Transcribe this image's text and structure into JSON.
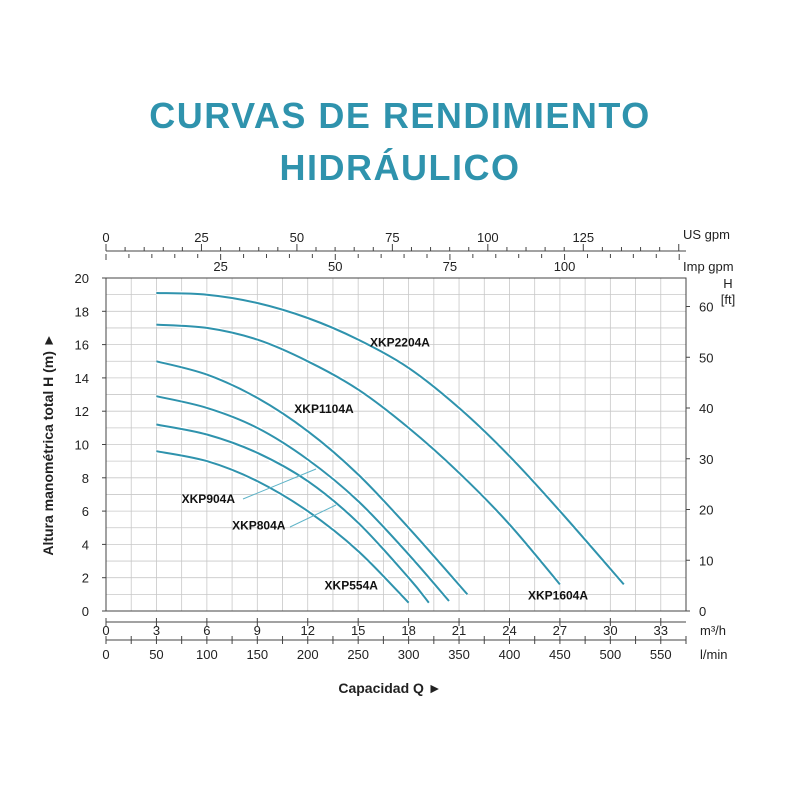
{
  "title_line1": "CURVAS DE RENDIMIENTO",
  "title_line2": "HIDRÁULICO",
  "chart_data": {
    "type": "line",
    "title": "CURVAS DE RENDIMIENTO HIDRÁULICO",
    "xlabel": "Capacidad Q ►",
    "ylabel": "Altura manométrica total H (m) ►",
    "xlim": [
      0,
      34.5
    ],
    "ylim": [
      0,
      20
    ],
    "grid": true,
    "x_unit": "m³/h",
    "x_ticks": [
      0,
      3,
      6,
      9,
      12,
      15,
      18,
      21,
      24,
      27,
      30,
      33
    ],
    "y_ticks": [
      0,
      2,
      4,
      6,
      8,
      10,
      12,
      14,
      16,
      18,
      20
    ],
    "secondary_axes": {
      "lmin": {
        "unit": "l/min",
        "ticks": [
          0,
          50,
          100,
          150,
          200,
          250,
          300,
          350,
          400,
          450,
          500,
          550
        ]
      },
      "usgpm": {
        "unit": "US gpm",
        "ticks": [
          0,
          25,
          50,
          75,
          100,
          125
        ]
      },
      "impgpm": {
        "unit": "Imp gpm",
        "ticks": [
          25,
          50,
          75,
          100
        ]
      },
      "ft": {
        "unit_line1": "H",
        "unit_line2": "[ft]",
        "ticks": [
          0,
          10,
          20,
          30,
          40,
          50,
          60
        ]
      }
    },
    "series": [
      {
        "name": "XKP554A",
        "color": "#2f93ad",
        "x": [
          3,
          6,
          9,
          12,
          15,
          18
        ],
        "y": [
          9.6,
          9.0,
          7.8,
          6.0,
          3.6,
          0.5
        ]
      },
      {
        "name": "XKP804A",
        "color": "#2f93ad",
        "x": [
          3,
          6,
          9,
          12,
          15,
          18,
          19.2
        ],
        "y": [
          11.2,
          10.6,
          9.5,
          7.8,
          5.3,
          2.0,
          0.5
        ]
      },
      {
        "name": "XKP904A",
        "color": "#2f93ad",
        "x": [
          3,
          6,
          9,
          12,
          15,
          18,
          20.4
        ],
        "y": [
          12.9,
          12.2,
          11.0,
          9.1,
          6.6,
          3.4,
          0.6
        ]
      },
      {
        "name": "XKP1104A",
        "color": "#2f93ad",
        "x": [
          3,
          6,
          9,
          12,
          15,
          18,
          21.5
        ],
        "y": [
          15.0,
          14.2,
          12.8,
          10.8,
          8.2,
          5.0,
          1.0
        ]
      },
      {
        "name": "XKP1604A",
        "color": "#2f93ad",
        "x": [
          3,
          6,
          9,
          12,
          15,
          18,
          21,
          24,
          27
        ],
        "y": [
          17.2,
          17.0,
          16.3,
          15.0,
          13.3,
          11.0,
          8.3,
          5.2,
          1.6
        ]
      },
      {
        "name": "XKP2204A",
        "color": "#2f93ad",
        "x": [
          3,
          6,
          9,
          12,
          15,
          18,
          21,
          24,
          27,
          30.8
        ],
        "y": [
          19.1,
          19.0,
          18.5,
          17.6,
          16.3,
          14.6,
          12.2,
          9.3,
          6.0,
          1.6
        ]
      }
    ],
    "labels": [
      {
        "text": "XKP2204A",
        "x": 15.7,
        "y": 15.9
      },
      {
        "text": "XKP1104A",
        "x": 11.2,
        "y": 11.9
      },
      {
        "text": "XKP904A",
        "x": 4.5,
        "y": 6.5
      },
      {
        "text": "XKP804A",
        "x": 7.5,
        "y": 4.9
      },
      {
        "text": "XKP554A",
        "x": 13.0,
        "y": 1.3
      },
      {
        "text": "XKP1604A",
        "x": 25.1,
        "y": 0.7
      }
    ]
  }
}
